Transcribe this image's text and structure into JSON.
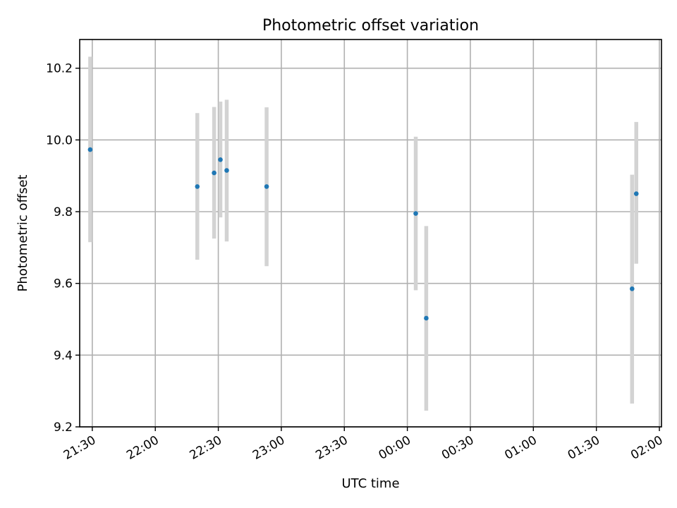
{
  "chart_data": {
    "type": "scatter",
    "title": "Photometric offset variation",
    "xlabel": "UTC time",
    "ylabel": "Photometric offset",
    "xlim": [
      "21:24",
      "02:01"
    ],
    "ylim": [
      9.2,
      10.28
    ],
    "x_ticks": [
      "21:30",
      "22:00",
      "22:30",
      "23:00",
      "23:30",
      "00:00",
      "00:30",
      "01:00",
      "01:30",
      "02:00"
    ],
    "y_ticks": [
      9.2,
      9.4,
      9.6,
      9.8,
      10.0,
      10.2
    ],
    "grid": true,
    "marker_color": "#1f77b4",
    "errorbar_color": "#d3d3d3",
    "points": [
      {
        "x": "21:29",
        "y": 9.973,
        "err_low": 9.715,
        "err_high": 10.232
      },
      {
        "x": "22:20",
        "y": 9.87,
        "err_low": 9.666,
        "err_high": 10.075
      },
      {
        "x": "22:28",
        "y": 9.908,
        "err_low": 9.725,
        "err_high": 10.092
      },
      {
        "x": "22:31",
        "y": 9.945,
        "err_low": 9.784,
        "err_high": 10.107
      },
      {
        "x": "22:34",
        "y": 9.915,
        "err_low": 9.717,
        "err_high": 10.112
      },
      {
        "x": "22:53",
        "y": 9.87,
        "err_low": 9.648,
        "err_high": 10.091
      },
      {
        "x": "00:04",
        "y": 9.795,
        "err_low": 9.581,
        "err_high": 10.009
      },
      {
        "x": "00:09",
        "y": 9.503,
        "err_low": 9.245,
        "err_high": 9.76
      },
      {
        "x": "01:47",
        "y": 9.585,
        "err_low": 9.265,
        "err_high": 9.903
      },
      {
        "x": "01:49",
        "y": 9.85,
        "err_low": 9.655,
        "err_high": 10.05
      }
    ]
  }
}
